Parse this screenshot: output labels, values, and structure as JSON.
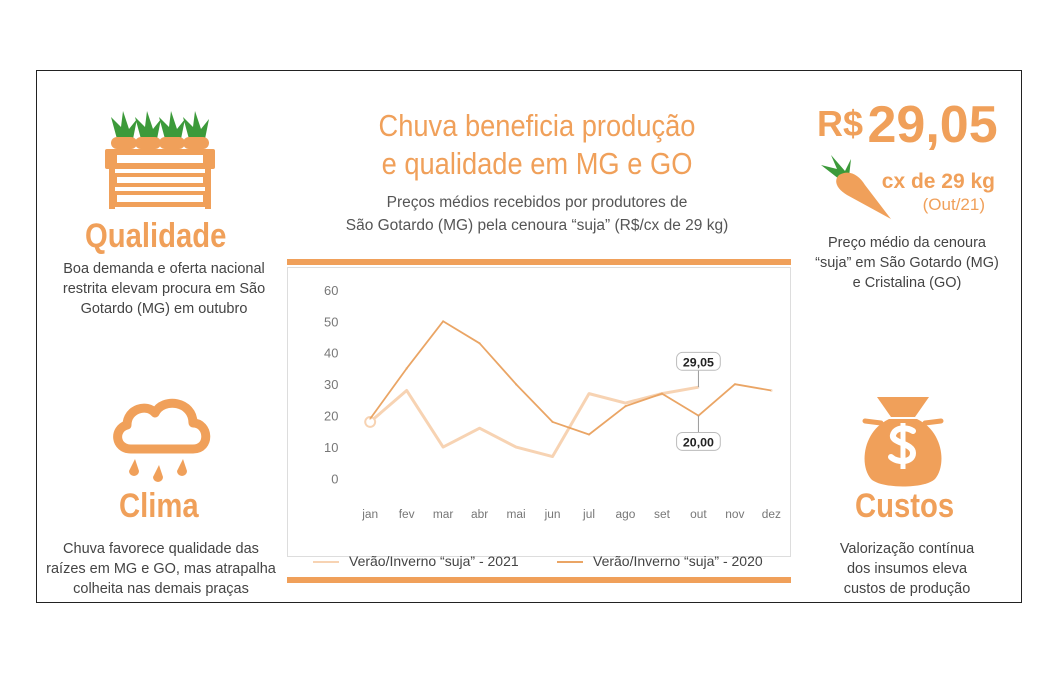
{
  "header": {
    "title_line1": "Chuva beneficia produção",
    "title_line2": "e qualidade em MG e GO",
    "subtitle_line1": "Preços médios recebidos por produtores de",
    "subtitle_line2": "São Gotardo (MG) pela cenoura “suja” (R$/cx de 29 kg)"
  },
  "qualidade": {
    "title": "Qualidade",
    "text_line1": "Boa demanda e oferta nacional",
    "text_line2": "restrita elevam procura em São",
    "text_line3": "Gotardo (MG) em outubro",
    "icon": "carrot-crate-icon"
  },
  "clima": {
    "title": "Clima",
    "text_line1": "Chuva favorece qualidade das",
    "text_line2": "raízes em MG e GO, mas atrapalha",
    "text_line3": "colheita nas demais praças",
    "icon": "rain-cloud-icon"
  },
  "price": {
    "currency": "R$",
    "value_int": "29",
    "value_dec": ",05",
    "unit": "cx de 29 kg",
    "period": "(Out/21)",
    "text_line1": "Preço médio da cenoura",
    "text_line2": "“suja” em São Gotardo (MG)",
    "text_line3": "e Cristalina (GO)",
    "icon": "carrot-icon"
  },
  "custos": {
    "title": "Custos",
    "text_line1": "Valorização contínua",
    "text_line2": "dos insumos eleva",
    "text_line3": "custos de produção",
    "icon": "money-bag-icon"
  },
  "colors": {
    "accent": "#f0a05a",
    "series_2021": "#f7d3b3",
    "series_2020": "#eaa565"
  },
  "chart_data": {
    "type": "line",
    "categories": [
      "jan",
      "fev",
      "mar",
      "abr",
      "mai",
      "jun",
      "jul",
      "ago",
      "set",
      "out",
      "nov",
      "dez"
    ],
    "ylim": [
      0,
      60
    ],
    "yticks": [
      0,
      10,
      20,
      30,
      40,
      50,
      60
    ],
    "series": [
      {
        "name": "Verão/Inverno “suja” - 2021",
        "values": [
          18,
          28,
          10,
          16,
          10,
          7,
          27,
          24,
          27,
          29.05,
          null,
          null
        ]
      },
      {
        "name": "Verão/Inverno “suja” - 2020",
        "values": [
          19,
          35,
          50,
          43,
          30,
          18,
          14,
          23,
          27,
          20.0,
          30,
          28
        ]
      }
    ],
    "annotations": [
      {
        "series": 0,
        "index": 9,
        "label": "29,05"
      },
      {
        "series": 1,
        "index": 9,
        "label": "20,00"
      }
    ]
  }
}
